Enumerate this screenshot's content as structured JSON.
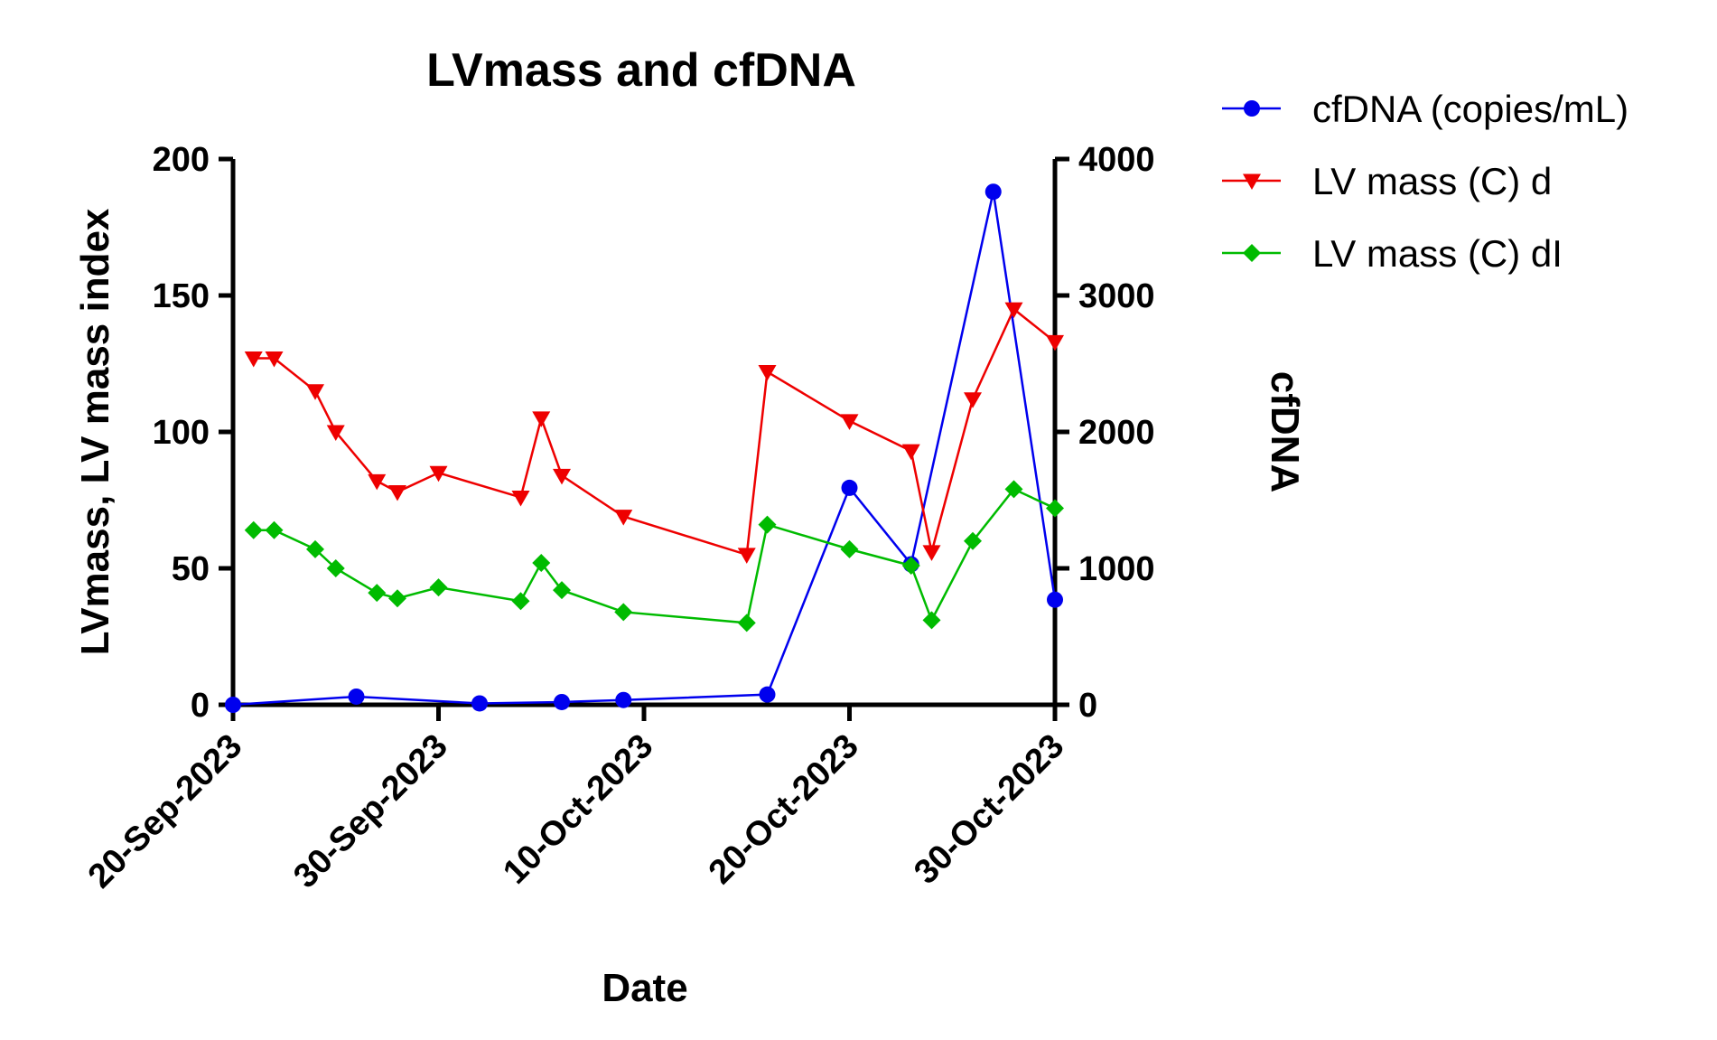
{
  "chart_data": {
    "type": "line",
    "title": "LVmass and cfDNA",
    "xlabel": "Date",
    "ylabel_left": "LVmass, LV mass index",
    "ylabel_right": "cfDNA",
    "xlim_day": [
      0,
      40
    ],
    "ylim_left": [
      0,
      200
    ],
    "ylim_right": [
      0,
      4000
    ],
    "x_ticks": [
      {
        "day": 0,
        "label": "20-Sep-2023"
      },
      {
        "day": 10,
        "label": "30-Sep-2023"
      },
      {
        "day": 20,
        "label": "10-Oct-2023"
      },
      {
        "day": 30,
        "label": "20-Oct-2023"
      },
      {
        "day": 40,
        "label": "30-Oct-2023"
      }
    ],
    "y_left_ticks": [
      0,
      50,
      100,
      150,
      200
    ],
    "y_right_ticks": [
      0,
      1000,
      2000,
      3000,
      4000
    ],
    "legend_position": "top-right outside",
    "series": [
      {
        "name": "cfDNA (copies/mL)",
        "axis": "right",
        "color": "#0000ee",
        "marker": "circle",
        "points": [
          {
            "day": 0,
            "value": 0
          },
          {
            "day": 6,
            "value": 60
          },
          {
            "day": 12,
            "value": 10
          },
          {
            "day": 16,
            "value": 20
          },
          {
            "day": 19,
            "value": 35
          },
          {
            "day": 26,
            "value": 75
          },
          {
            "day": 30,
            "value": 1590
          },
          {
            "day": 33,
            "value": 1030
          },
          {
            "day": 37,
            "value": 3760
          },
          {
            "day": 40,
            "value": 770
          }
        ]
      },
      {
        "name": "LV mass (C) d",
        "axis": "left",
        "color": "#ee0000",
        "marker": "triangle-down",
        "points": [
          {
            "day": 1,
            "value": 127
          },
          {
            "day": 2,
            "value": 127
          },
          {
            "day": 4,
            "value": 115
          },
          {
            "day": 5,
            "value": 100
          },
          {
            "day": 7,
            "value": 82
          },
          {
            "day": 8,
            "value": 78
          },
          {
            "day": 10,
            "value": 85
          },
          {
            "day": 14,
            "value": 76
          },
          {
            "day": 15,
            "value": 105
          },
          {
            "day": 16,
            "value": 84
          },
          {
            "day": 19,
            "value": 69
          },
          {
            "day": 25,
            "value": 55
          },
          {
            "day": 26,
            "value": 122
          },
          {
            "day": 30,
            "value": 104
          },
          {
            "day": 33,
            "value": 93
          },
          {
            "day": 34,
            "value": 56
          },
          {
            "day": 36,
            "value": 112
          },
          {
            "day": 38,
            "value": 145
          },
          {
            "day": 40,
            "value": 133
          }
        ]
      },
      {
        "name": "LV mass (C) dI",
        "axis": "left",
        "color": "#00bb00",
        "marker": "diamond",
        "points": [
          {
            "day": 1,
            "value": 64
          },
          {
            "day": 2,
            "value": 64
          },
          {
            "day": 4,
            "value": 57
          },
          {
            "day": 5,
            "value": 50
          },
          {
            "day": 7,
            "value": 41
          },
          {
            "day": 8,
            "value": 39
          },
          {
            "day": 10,
            "value": 43
          },
          {
            "day": 14,
            "value": 38
          },
          {
            "day": 15,
            "value": 52
          },
          {
            "day": 16,
            "value": 42
          },
          {
            "day": 19,
            "value": 34
          },
          {
            "day": 25,
            "value": 30
          },
          {
            "day": 26,
            "value": 66
          },
          {
            "day": 30,
            "value": 57
          },
          {
            "day": 33,
            "value": 51
          },
          {
            "day": 34,
            "value": 31
          },
          {
            "day": 36,
            "value": 60
          },
          {
            "day": 38,
            "value": 79
          },
          {
            "day": 40,
            "value": 72
          }
        ]
      }
    ]
  }
}
